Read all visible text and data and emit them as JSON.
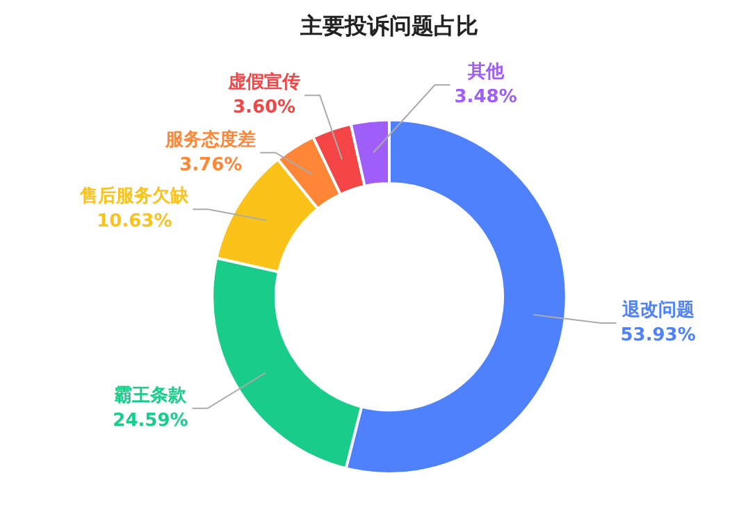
{
  "chart_data": {
    "type": "donut",
    "title": "主要投诉问题占比",
    "categories": [
      "退改问题",
      "霸王条款",
      "售后服务欠缺",
      "服务态度差",
      "虚假宣传",
      "其他"
    ],
    "values": [
      53.93,
      24.59,
      10.63,
      3.76,
      3.6,
      3.48
    ],
    "colors": [
      "#4f81fd",
      "#19cc8a",
      "#fbc21a",
      "#ff8636",
      "#f34546",
      "#a05ef8"
    ],
    "value_labels": [
      "53.93%",
      "24.59%",
      "10.63%",
      "3.76%",
      "3.60%",
      "3.48%"
    ],
    "legend": false
  }
}
